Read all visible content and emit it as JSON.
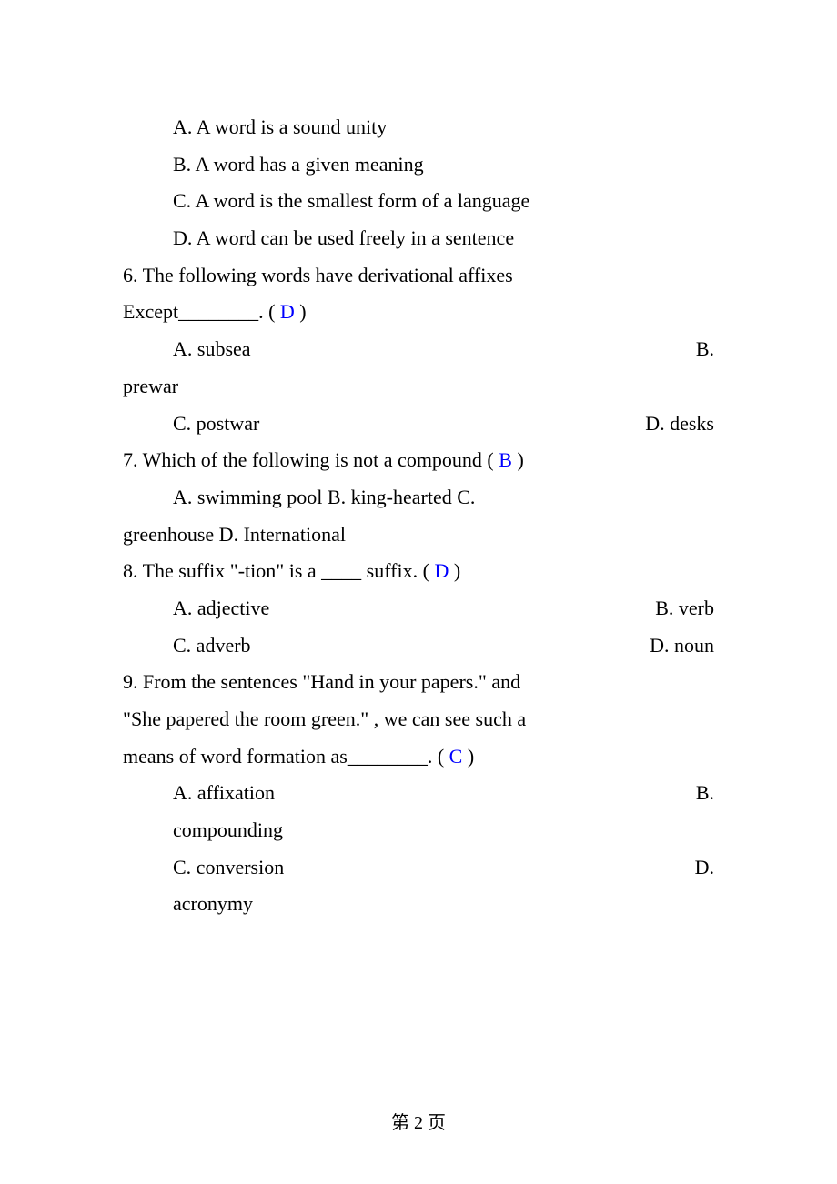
{
  "q5": {
    "optA": "A. A word is a sound unity",
    "optB": "B. A word has a given meaning",
    "optC": "C. A word is the smallest form of a language",
    "optD": "D. A word can be used freely in a sentence"
  },
  "q6": {
    "text1": "6. The following words have derivational affixes",
    "text2_pre": "Except________. (   ",
    "answer": "D",
    "text2_post": "  )",
    "optA": "A. subsea",
    "optB_right": "B.",
    "optB_cont": "prewar",
    "optC": "C. postwar",
    "optD": "D. desks"
  },
  "q7": {
    "text_pre": "7. Which of the following is not a compound    ( ",
    "answer": "B",
    "text_post": "   )",
    "opts_line1": "A. swimming pool      B. king-hearted      C.",
    "opts_line2": "greenhouse   D. International"
  },
  "q8": {
    "text_pre": "8. The suffix  \"-tion\"   is a ____ suffix. (   ",
    "answer": "D",
    "text_post": "    )",
    "optA": "A. adjective",
    "optB": "B. verb",
    "optC": "C. adverb",
    "optD": "D. noun"
  },
  "q9": {
    "line1": "9. From the sentences  \"Hand in your papers.\"   and",
    "line2": " \"She papered the room green.\"  , we can see such a",
    "line3_pre": "means of word formation as________. (   ",
    "answer": "C",
    "line3_post": "   )",
    "optA": "A. affixation",
    "optB_right": "B.",
    "optB_cont": "compounding",
    "optC": "C. conversion",
    "optD_right": "D.",
    "optD_cont": "acronymy"
  },
  "footer": "第 2 页"
}
